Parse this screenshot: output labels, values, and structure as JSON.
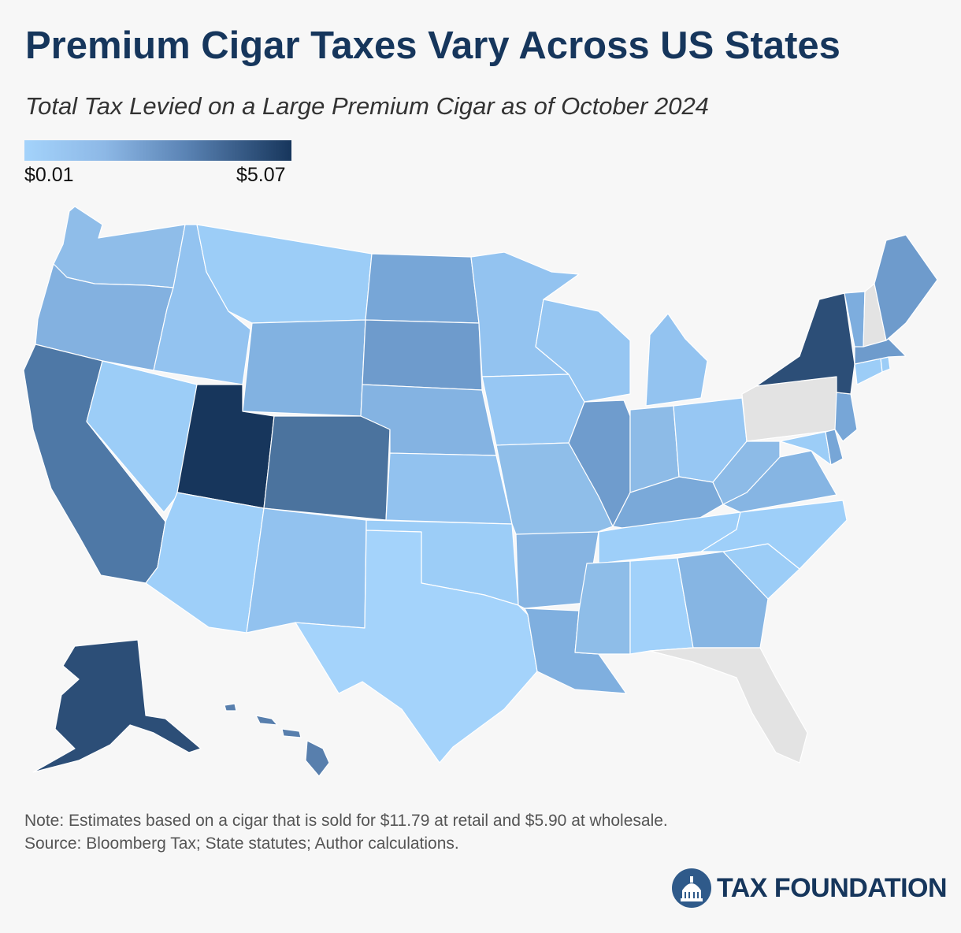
{
  "header": {
    "title": "Premium Cigar Taxes Vary Across US States",
    "subtitle": "Total Tax Levied on a Large Premium Cigar as of October 2024"
  },
  "legend": {
    "min_label": "$0.01",
    "max_label": "$5.07",
    "color_low": "#a4d3fb",
    "color_high": "#17365c",
    "no_tax_color": "#e3e3e3"
  },
  "map": {
    "states": [
      {
        "id": "WA",
        "color": "#8fbde9"
      },
      {
        "id": "OR",
        "color": "#83b1e0"
      },
      {
        "id": "CA",
        "color": "#4e78a6"
      },
      {
        "id": "ID",
        "color": "#93c3f0"
      },
      {
        "id": "NV",
        "color": "#9ccdf7"
      },
      {
        "id": "MT",
        "color": "#9ccdf7"
      },
      {
        "id": "WY",
        "color": "#82b2e1"
      },
      {
        "id": "UT",
        "color": "#17365c"
      },
      {
        "id": "AZ",
        "color": "#9ecff9"
      },
      {
        "id": "CO",
        "color": "#4b739e"
      },
      {
        "id": "NM",
        "color": "#92c2ef"
      },
      {
        "id": "ND",
        "color": "#77a6d7"
      },
      {
        "id": "SD",
        "color": "#6e9bcc"
      },
      {
        "id": "NE",
        "color": "#84b3e2"
      },
      {
        "id": "KS",
        "color": "#92c2ef"
      },
      {
        "id": "OK",
        "color": "#9ccdf7"
      },
      {
        "id": "TX",
        "color": "#a4d3fb"
      },
      {
        "id": "MN",
        "color": "#93c3f0"
      },
      {
        "id": "IA",
        "color": "#97c7f3"
      },
      {
        "id": "MO",
        "color": "#8fbee9"
      },
      {
        "id": "AR",
        "color": "#86b4e2"
      },
      {
        "id": "LA",
        "color": "#7fafdf"
      },
      {
        "id": "WI",
        "color": "#96c6f2"
      },
      {
        "id": "IL",
        "color": "#6f9ccd"
      },
      {
        "id": "MI",
        "color": "#93c3f0"
      },
      {
        "id": "IN",
        "color": "#8dbbe7"
      },
      {
        "id": "OH",
        "color": "#97c7f3"
      },
      {
        "id": "KY",
        "color": "#7aa9d9"
      },
      {
        "id": "TN",
        "color": "#9ecff9"
      },
      {
        "id": "MS",
        "color": "#8ebde8"
      },
      {
        "id": "AL",
        "color": "#a1d1fa"
      },
      {
        "id": "GA",
        "color": "#86b5e3"
      },
      {
        "id": "FL",
        "color": "#e3e3e3"
      },
      {
        "id": "SC",
        "color": "#9ccdf7"
      },
      {
        "id": "NC",
        "color": "#9ecff9"
      },
      {
        "id": "VA",
        "color": "#86b5e3"
      },
      {
        "id": "WV",
        "color": "#8dbbe7"
      },
      {
        "id": "PA",
        "color": "#e3e3e3"
      },
      {
        "id": "NY",
        "color": "#2c4e77"
      },
      {
        "id": "VT",
        "color": "#7dadde"
      },
      {
        "id": "NH",
        "color": "#e3e3e3"
      },
      {
        "id": "ME",
        "color": "#6e9bcc"
      },
      {
        "id": "MA",
        "color": "#6e9bcc"
      },
      {
        "id": "CT",
        "color": "#9ccdf7"
      },
      {
        "id": "RI",
        "color": "#9ccdf7"
      },
      {
        "id": "NJ",
        "color": "#77a6d7"
      },
      {
        "id": "DE",
        "color": "#77a6d7"
      },
      {
        "id": "MD",
        "color": "#9ccdf7"
      },
      {
        "id": "AK",
        "color": "#2c4e77"
      },
      {
        "id": "HI",
        "color": "#587fad"
      }
    ]
  },
  "footer": {
    "note": "Note: Estimates based on a cigar that is sold for $11.79 at retail and $5.90 at wholesale.",
    "source": "Source: Bloomberg Tax; State statutes; Author calculations.",
    "brand": "TAX FOUNDATION"
  }
}
